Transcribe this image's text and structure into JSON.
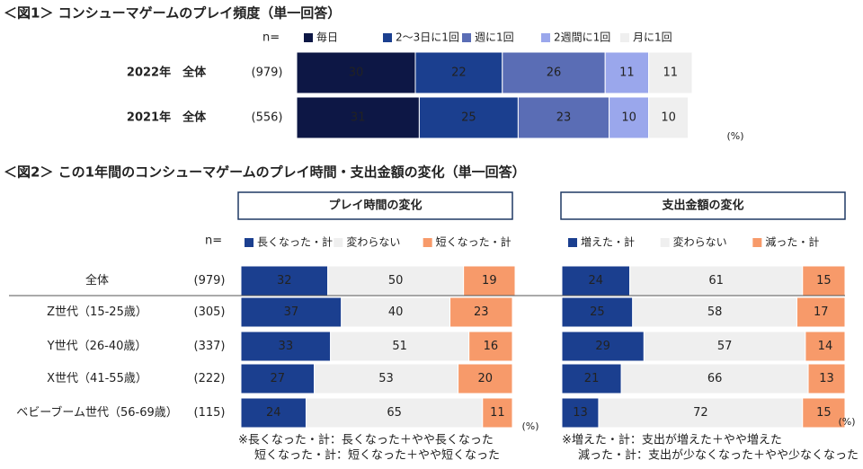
{
  "chart_data": [
    {
      "type": "stacked_barh",
      "title": "＜図1＞ コンシューマゲームのプレイ頻度（単一回答）",
      "n_label": "n=",
      "categories": [
        "2022年　全体",
        "2021年　全体"
      ],
      "n": [
        "(979)",
        "(556)"
      ],
      "unit": "(%)",
      "xlim": [
        0,
        100
      ],
      "series": [
        {
          "name": "毎日",
          "color": "#0d1745",
          "values": [
            30,
            31
          ]
        },
        {
          "name": "2～3日に1回",
          "color": "#1b3f8f",
          "values": [
            22,
            25
          ]
        },
        {
          "name": "週に1回",
          "color": "#5a6db5",
          "values": [
            26,
            23
          ]
        },
        {
          "name": "2週間に1回",
          "color": "#9aa7ec",
          "values": [
            11,
            10
          ]
        },
        {
          "name": "月に1回",
          "color": "#efefef",
          "values": [
            11,
            10
          ]
        }
      ]
    },
    {
      "type": "stacked_barh",
      "title": "＜図2＞ この1年間のコンシューマゲームのプレイ時間・支出金額の変化（単一回答）",
      "subtitle": "プレイ時間の変化",
      "n_label": "n=",
      "categories": [
        "全体",
        "Z世代（15-25歳）",
        "Y世代（26-40歳）",
        "X世代（41-55歳）",
        "ベビーブーム世代（56-69歳）"
      ],
      "n": [
        "(979)",
        "(305)",
        "(337)",
        "(222)",
        "(115)"
      ],
      "unit": "(%)",
      "xlim": [
        0,
        100
      ],
      "series": [
        {
          "name": "長くなった・計",
          "color": "#1b3f8f",
          "values": [
            32,
            37,
            33,
            27,
            24
          ]
        },
        {
          "name": "変わらない",
          "color": "#efefef",
          "values": [
            50,
            40,
            51,
            53,
            65
          ]
        },
        {
          "name": "短くなった・計",
          "color": "#f79a6a",
          "values": [
            19,
            23,
            16,
            20,
            11
          ]
        }
      ],
      "notes": [
        "※長くなった・計：長くなった＋やや長くなった",
        "短くなった・計：短くなった＋やや短くなった"
      ]
    },
    {
      "type": "stacked_barh",
      "subtitle": "支出金額の変化",
      "unit": "(%)",
      "xlim": [
        0,
        100
      ],
      "series": [
        {
          "name": "増えた・計",
          "color": "#1b3f8f",
          "values": [
            24,
            25,
            29,
            21,
            13
          ]
        },
        {
          "name": "変わらない",
          "color": "#efefef",
          "values": [
            61,
            58,
            57,
            66,
            72
          ]
        },
        {
          "name": "減った・計",
          "color": "#f79a6a",
          "values": [
            15,
            17,
            14,
            13,
            15
          ]
        }
      ],
      "notes": [
        "※増えた・計：支出が増えた＋やや増えた",
        "減った・計：支出が少なくなった＋やや少なくなった"
      ]
    }
  ]
}
